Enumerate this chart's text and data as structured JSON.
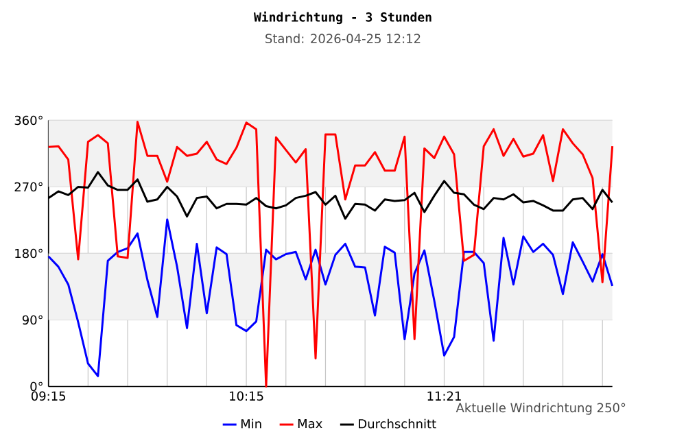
{
  "chart_data": {
    "type": "line",
    "title": "Windrichtung - 3 Stunden",
    "subtitle": "Stand: 2026-04-25 12:12",
    "categories": [
      "09:15",
      null,
      null,
      null,
      null,
      null,
      null,
      null,
      null,
      null,
      null,
      null,
      null,
      null,
      null,
      null,
      null,
      null,
      null,
      null,
      "10:15",
      null,
      null,
      null,
      null,
      null,
      null,
      null,
      null,
      null,
      null,
      null,
      null,
      null,
      null,
      null,
      null,
      null,
      null,
      null,
      "11:21",
      null,
      null,
      null,
      null,
      null,
      null,
      null,
      null,
      null,
      null,
      null,
      null,
      null,
      null,
      null,
      null,
      null
    ],
    "series": [
      {
        "name": "Min",
        "color": "#0000ff",
        "values": [
          176,
          162,
          138,
          87,
          31,
          14,
          170,
          182,
          187,
          207,
          144,
          94,
          226,
          162,
          79,
          193,
          99,
          188,
          179,
          83,
          75,
          88,
          185,
          172,
          179,
          182,
          145,
          185,
          138,
          178,
          193,
          162,
          161,
          96,
          189,
          181,
          64,
          153,
          184,
          116,
          42,
          67,
          182,
          182,
          167,
          62,
          201,
          138,
          203,
          182,
          193,
          178,
          125,
          195,
          169,
          142,
          179,
          136
        ]
      },
      {
        "name": "Max",
        "color": "#ff0000",
        "values": [
          324,
          325,
          307,
          172,
          331,
          340,
          329,
          176,
          174,
          358,
          312,
          312,
          277,
          324,
          312,
          315,
          331,
          307,
          301,
          323,
          357,
          348,
          0,
          337,
          320,
          303,
          321,
          38,
          341,
          341,
          253,
          299,
          299,
          317,
          292,
          292,
          338,
          64,
          322,
          309,
          338,
          314,
          170,
          178,
          325,
          348,
          312,
          335,
          311,
          315,
          340,
          278,
          348,
          329,
          314,
          282,
          141,
          325
        ]
      },
      {
        "name": "Durchschnitt",
        "color": "#000000",
        "values": [
          255,
          264,
          259,
          270,
          269,
          290,
          272,
          266,
          266,
          280,
          250,
          253,
          270,
          257,
          230,
          255,
          257,
          241,
          247,
          247,
          246,
          255,
          244,
          241,
          245,
          255,
          258,
          263,
          246,
          258,
          227,
          247,
          246,
          238,
          253,
          251,
          252,
          262,
          236,
          258,
          278,
          262,
          260,
          246,
          240,
          255,
          253,
          260,
          249,
          251,
          245,
          238,
          238,
          253,
          255,
          240,
          266,
          249
        ]
      }
    ],
    "ylim": [
      0,
      360
    ],
    "yticks": [
      {
        "value": 0,
        "label": "0°"
      },
      {
        "value": 90,
        "label": "90°"
      },
      {
        "value": 180,
        "label": "180°"
      },
      {
        "value": 270,
        "label": "270°"
      },
      {
        "value": 360,
        "label": "360°"
      }
    ],
    "bands": [
      {
        "axis": "y",
        "from": 90,
        "to": 180,
        "color": "#f2f2f2"
      },
      {
        "axis": "y",
        "from": 270,
        "to": 360,
        "color": "#f2f2f2"
      }
    ],
    "grid": true,
    "legend": "bottom",
    "marker": "none",
    "line_style": "solid",
    "annotations": [
      "Aktuelle Windrichtung 250°"
    ]
  }
}
